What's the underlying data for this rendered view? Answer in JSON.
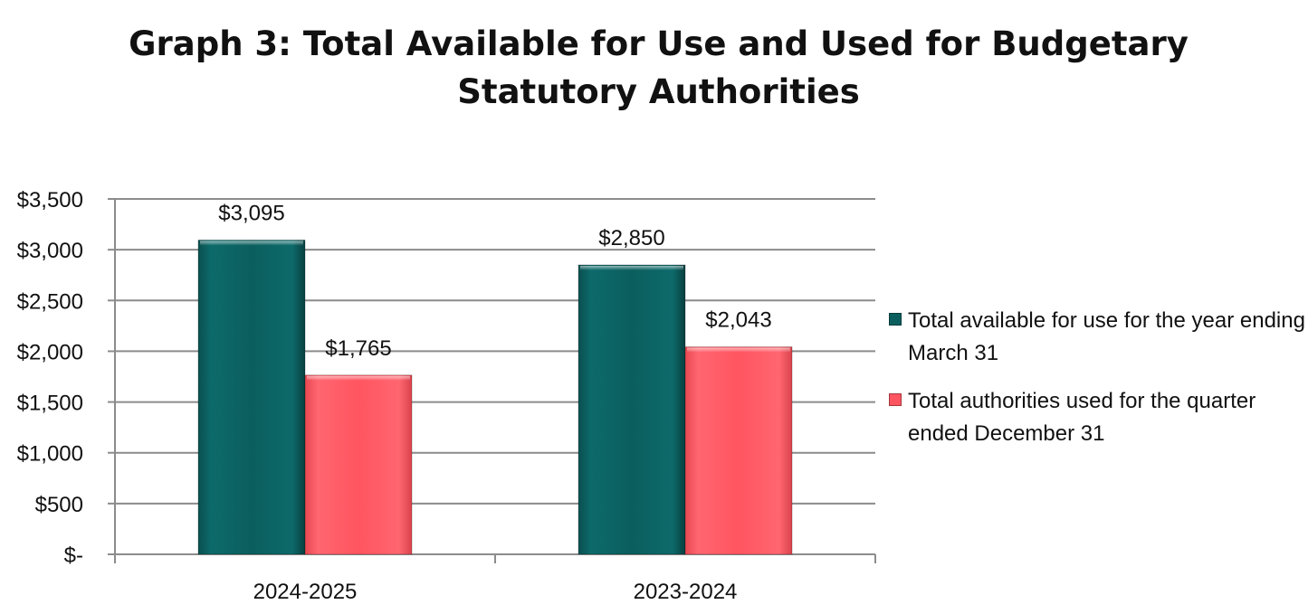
{
  "chart_data": {
    "type": "bar",
    "title_lines": [
      "Graph 3: Total Available for Use and Used for Budgetary",
      "Statutory Authorities"
    ],
    "categories": [
      "2024-2025",
      "2023-2024"
    ],
    "series": [
      {
        "name": "Total available for use for the year ending March 31",
        "color": "#0b5e5e",
        "values": [
          3095,
          2850
        ],
        "labels": [
          "$3,095",
          "$2,850"
        ]
      },
      {
        "name": "Total authorities used for the quarter ended December 31",
        "color": "#ff5560",
        "values": [
          1765,
          2043
        ],
        "labels": [
          "$1,765",
          "$2,043"
        ]
      }
    ],
    "ylim": [
      0,
      3500
    ],
    "yticks": [
      0,
      500,
      1000,
      1500,
      2000,
      2500,
      3000,
      3500
    ],
    "ytick_labels": [
      "$-",
      "$500",
      "$1,000",
      "$1,500",
      "$2,000",
      "$2,500",
      "$3,000",
      "$3,500"
    ],
    "grid": true,
    "legend_position": "right"
  }
}
